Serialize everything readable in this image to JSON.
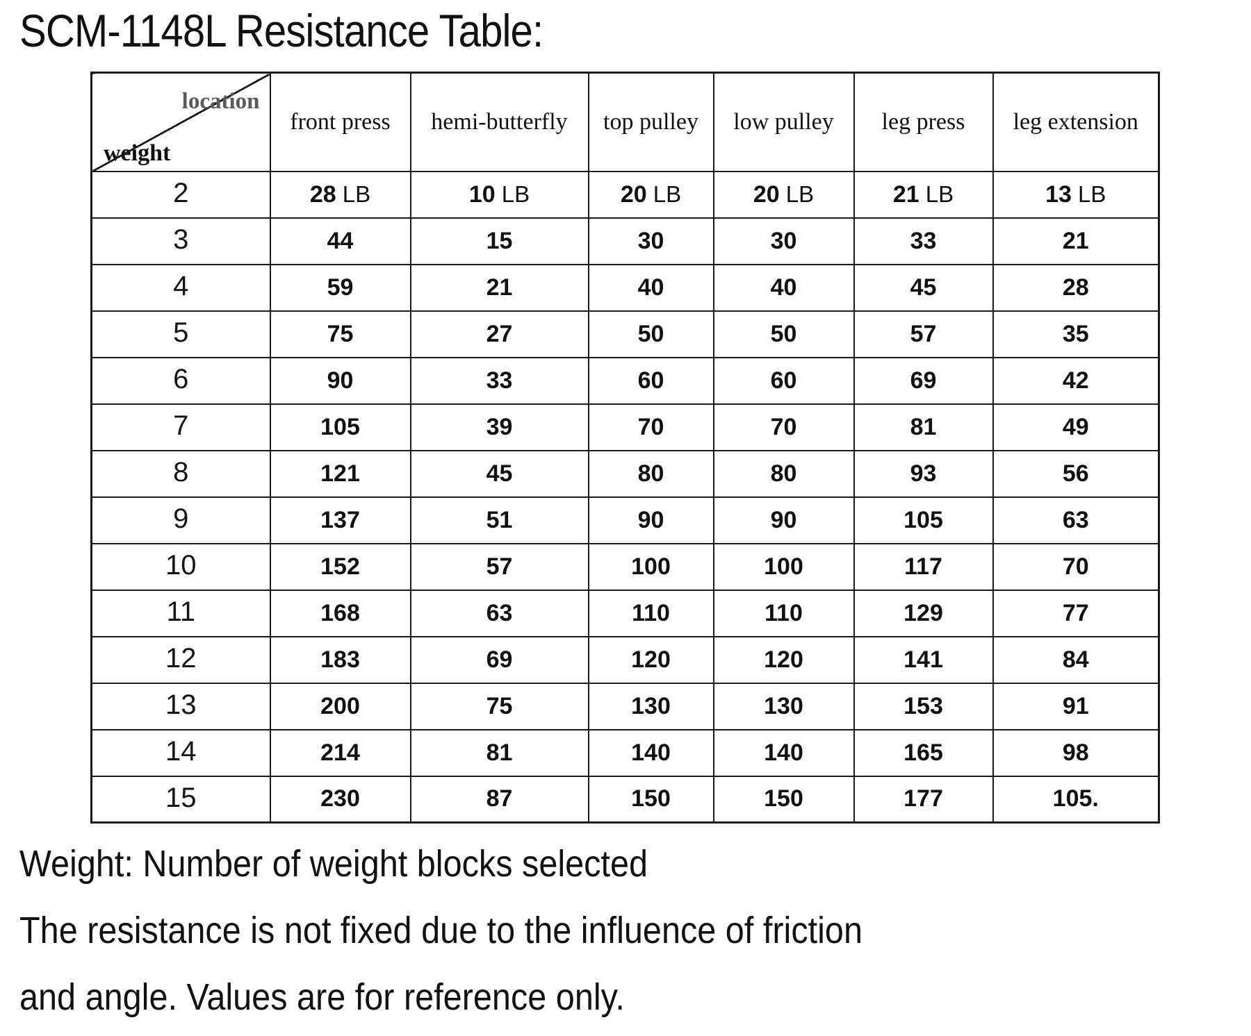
{
  "title": "SCM-1148L Resistance Table:",
  "table": {
    "corner_top_label": "location",
    "corner_bottom_label": "weight",
    "columns": [
      "front press",
      "hemi-butterfly",
      "top pulley",
      "low pulley",
      "leg press",
      "leg extension"
    ],
    "unit": "LB",
    "rows": [
      {
        "weight": "2",
        "show_unit": true,
        "values": [
          "28",
          "10",
          "20",
          "20",
          "21",
          "13"
        ]
      },
      {
        "weight": "3",
        "show_unit": false,
        "values": [
          "44",
          "15",
          "30",
          "30",
          "33",
          "21"
        ]
      },
      {
        "weight": "4",
        "show_unit": false,
        "values": [
          "59",
          "21",
          "40",
          "40",
          "45",
          "28"
        ]
      },
      {
        "weight": "5",
        "show_unit": false,
        "values": [
          "75",
          "27",
          "50",
          "50",
          "57",
          "35"
        ]
      },
      {
        "weight": "6",
        "show_unit": false,
        "values": [
          "90",
          "33",
          "60",
          "60",
          "69",
          "42"
        ]
      },
      {
        "weight": "7",
        "show_unit": false,
        "values": [
          "105",
          "39",
          "70",
          "70",
          "81",
          "49"
        ]
      },
      {
        "weight": "8",
        "show_unit": false,
        "values": [
          "121",
          "45",
          "80",
          "80",
          "93",
          "56"
        ]
      },
      {
        "weight": "9",
        "show_unit": false,
        "values": [
          "137",
          "51",
          "90",
          "90",
          "105",
          "63"
        ]
      },
      {
        "weight": "10",
        "show_unit": false,
        "values": [
          "152",
          "57",
          "100",
          "100",
          "117",
          "70"
        ]
      },
      {
        "weight": "11",
        "show_unit": false,
        "values": [
          "168",
          "63",
          "110",
          "110",
          "129",
          "77"
        ]
      },
      {
        "weight": "12",
        "show_unit": false,
        "values": [
          "183",
          "69",
          "120",
          "120",
          "141",
          "84"
        ]
      },
      {
        "weight": "13",
        "show_unit": false,
        "values": [
          "200",
          "75",
          "130",
          "130",
          "153",
          "91"
        ]
      },
      {
        "weight": "14",
        "show_unit": false,
        "values": [
          "214",
          "81",
          "140",
          "140",
          "165",
          "98"
        ]
      },
      {
        "weight": "15",
        "show_unit": false,
        "values": [
          "230",
          "87",
          "150",
          "150",
          "177",
          "105."
        ]
      }
    ]
  },
  "notes": [
    "Weight: Number of weight blocks selected",
    "The resistance is not fixed due to the influence of friction",
    "and angle. Values are for reference only."
  ],
  "colors": {
    "text": "#111111",
    "muted_label": "#5a5a5a",
    "border": "#1a1a1a",
    "background": "#ffffff"
  }
}
